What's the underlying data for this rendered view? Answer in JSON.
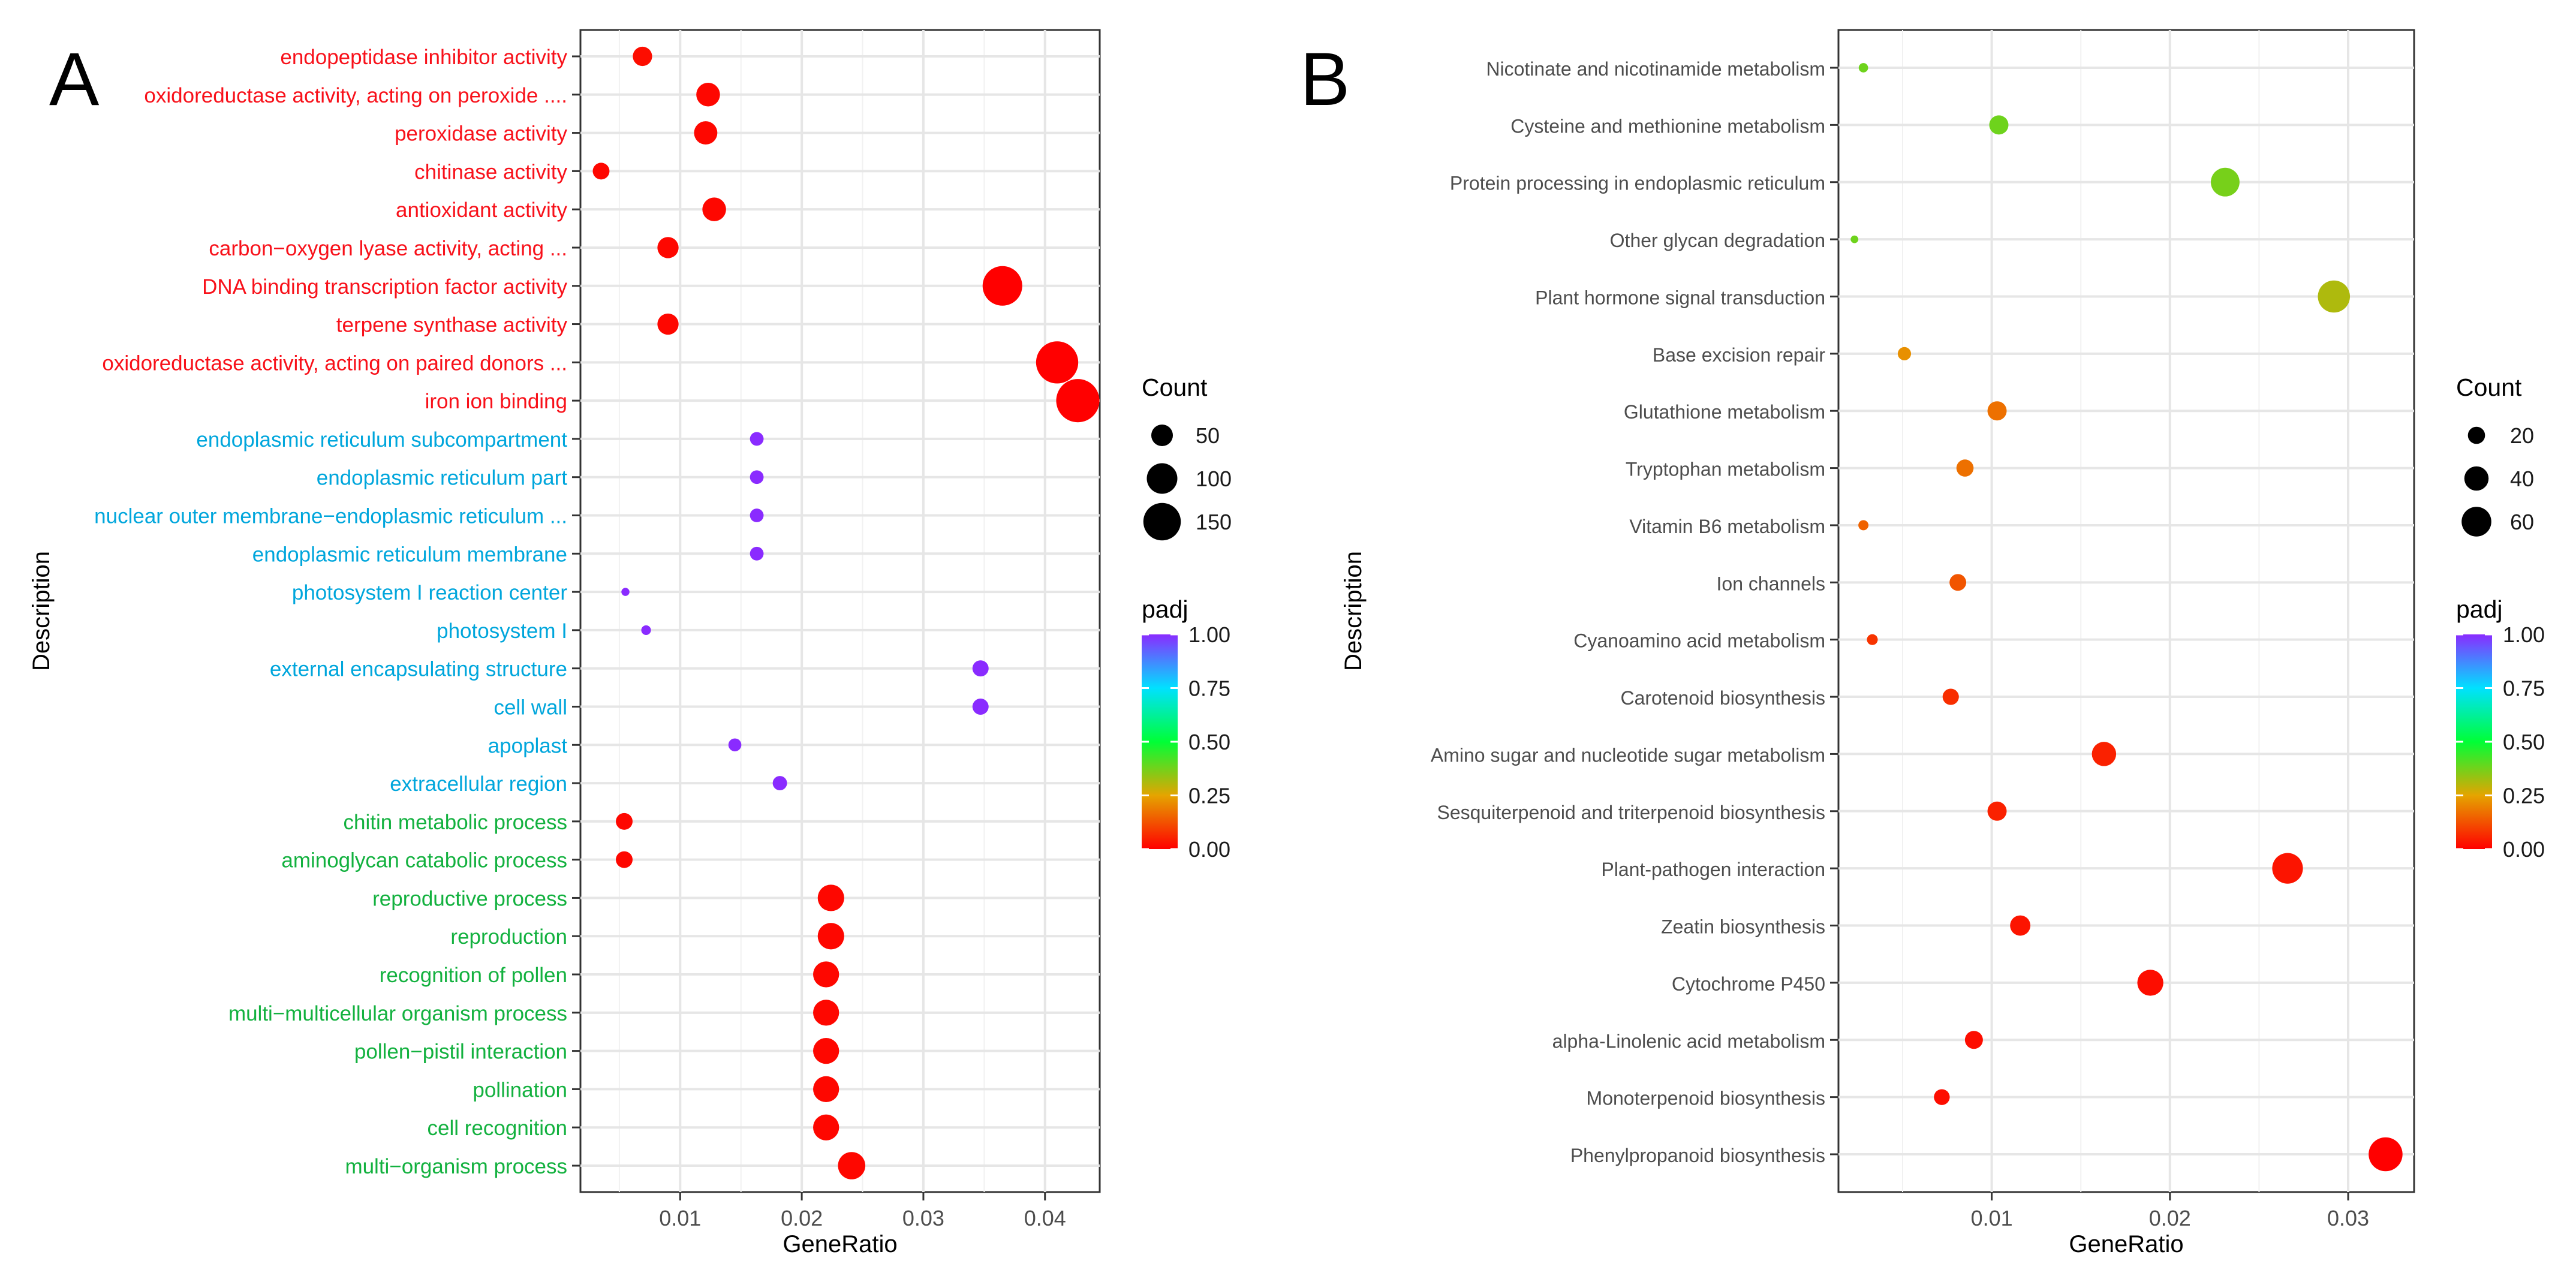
{
  "chart_data": [
    {
      "type": "scatter",
      "panel_label": "A",
      "xlabel": "GeneRatio",
      "ylabel": "Description",
      "xlim": [
        0.0018,
        0.0445
      ],
      "xticks": [
        {
          "value": 0.01,
          "label": "0.01"
        },
        {
          "value": 0.02,
          "label": "0.02"
        },
        {
          "value": 0.03,
          "label": "0.03"
        },
        {
          "value": 0.04,
          "label": "0.04"
        }
      ],
      "grid": true,
      "legend_position": "right",
      "size_legend": {
        "title": "Count",
        "entries": [
          {
            "value": 50,
            "label": "50"
          },
          {
            "value": 100,
            "label": "100"
          },
          {
            "value": 150,
            "label": "150"
          }
        ]
      },
      "color_legend": {
        "title": "padj",
        "ticks": [
          {
            "value": 1.0,
            "label": "1.00"
          },
          {
            "value": 0.75,
            "label": "0.75"
          },
          {
            "value": 0.5,
            "label": "0.50"
          },
          {
            "value": 0.25,
            "label": "0.25"
          },
          {
            "value": 0.0,
            "label": "0.00"
          }
        ]
      },
      "category_colors": {
        "mf": "#f8111a",
        "cc": "#00a6dc",
        "bp": "#13b13f"
      },
      "points": [
        {
          "label": "endopeptidase inhibitor activity",
          "x": 0.0069,
          "count": 40,
          "padj": 0.02,
          "group": "mf"
        },
        {
          "label": "oxidoreductase activity, acting on peroxide ....",
          "x": 0.0123,
          "count": 60,
          "padj": 0.01,
          "group": "mf"
        },
        {
          "label": "peroxidase activity",
          "x": 0.0121,
          "count": 58,
          "padj": 0.01,
          "group": "mf"
        },
        {
          "label": "chitinase activity",
          "x": 0.0035,
          "count": 30,
          "padj": 0.01,
          "group": "mf"
        },
        {
          "label": "antioxidant activity",
          "x": 0.0128,
          "count": 60,
          "padj": 0.01,
          "group": "mf"
        },
        {
          "label": "carbon−oxygen lyase activity, acting ...",
          "x": 0.009,
          "count": 48,
          "padj": 0.01,
          "group": "mf"
        },
        {
          "label": "DNA binding transcription factor activity",
          "x": 0.0365,
          "count": 168,
          "padj": 0.0,
          "group": "mf"
        },
        {
          "label": "terpene synthase activity",
          "x": 0.009,
          "count": 48,
          "padj": 0.01,
          "group": "mf"
        },
        {
          "label": "oxidoreductase activity, acting on paired donors ...",
          "x": 0.041,
          "count": 190,
          "padj": 0.0,
          "group": "mf"
        },
        {
          "label": "iron ion binding",
          "x": 0.0427,
          "count": 200,
          "padj": 0.0,
          "group": "mf"
        },
        {
          "label": "endoplasmic reticulum subcompartment",
          "x": 0.0163,
          "count": 20,
          "padj": 1.0,
          "group": "cc"
        },
        {
          "label": "endoplasmic reticulum part",
          "x": 0.0163,
          "count": 20,
          "padj": 1.0,
          "group": "cc"
        },
        {
          "label": "nuclear outer membrane−endoplasmic reticulum ...",
          "x": 0.0163,
          "count": 20,
          "padj": 1.0,
          "group": "cc"
        },
        {
          "label": "endoplasmic reticulum membrane",
          "x": 0.0163,
          "count": 20,
          "padj": 1.0,
          "group": "cc"
        },
        {
          "label": "photosystem I reaction center",
          "x": 0.0055,
          "count": 7,
          "padj": 1.0,
          "group": "cc"
        },
        {
          "label": "photosystem I",
          "x": 0.0072,
          "count": 10,
          "padj": 1.0,
          "group": "cc"
        },
        {
          "label": "external encapsulating structure",
          "x": 0.0347,
          "count": 28,
          "padj": 1.0,
          "group": "cc"
        },
        {
          "label": "cell wall",
          "x": 0.0347,
          "count": 28,
          "padj": 1.0,
          "group": "cc"
        },
        {
          "label": "apoplast",
          "x": 0.0145,
          "count": 18,
          "padj": 1.0,
          "group": "cc"
        },
        {
          "label": "extracellular region",
          "x": 0.0182,
          "count": 22,
          "padj": 1.0,
          "group": "cc"
        },
        {
          "label": "chitin metabolic process",
          "x": 0.0054,
          "count": 30,
          "padj": 0.01,
          "group": "bp"
        },
        {
          "label": "aminoglycan catabolic process",
          "x": 0.0054,
          "count": 30,
          "padj": 0.01,
          "group": "bp"
        },
        {
          "label": "reproductive process",
          "x": 0.0224,
          "count": 75,
          "padj": 0.01,
          "group": "bp"
        },
        {
          "label": "reproduction",
          "x": 0.0224,
          "count": 75,
          "padj": 0.01,
          "group": "bp"
        },
        {
          "label": "recognition of pollen",
          "x": 0.022,
          "count": 72,
          "padj": 0.01,
          "group": "bp"
        },
        {
          "label": "multi−multicellular organism process",
          "x": 0.022,
          "count": 72,
          "padj": 0.01,
          "group": "bp"
        },
        {
          "label": "pollen−pistil interaction",
          "x": 0.022,
          "count": 72,
          "padj": 0.01,
          "group": "bp"
        },
        {
          "label": "pollination",
          "x": 0.022,
          "count": 72,
          "padj": 0.01,
          "group": "bp"
        },
        {
          "label": "cell recognition",
          "x": 0.022,
          "count": 72,
          "padj": 0.01,
          "group": "bp"
        },
        {
          "label": "multi−organism process",
          "x": 0.0241,
          "count": 80,
          "padj": 0.01,
          "group": "bp"
        }
      ]
    },
    {
      "type": "scatter",
      "panel_label": "B",
      "xlabel": "GeneRatio",
      "ylabel": "Description",
      "xlim": [
        0.0014,
        0.0337
      ],
      "xticks": [
        {
          "value": 0.01,
          "label": "0.01"
        },
        {
          "value": 0.02,
          "label": "0.02"
        },
        {
          "value": 0.03,
          "label": "0.03"
        }
      ],
      "grid": true,
      "legend_position": "right",
      "size_legend": {
        "title": "Count",
        "entries": [
          {
            "value": 20,
            "label": "20"
          },
          {
            "value": 40,
            "label": "40"
          },
          {
            "value": 60,
            "label": "60"
          }
        ]
      },
      "color_legend": {
        "title": "padj",
        "ticks": [
          {
            "value": 1.0,
            "label": "1.00"
          },
          {
            "value": 0.75,
            "label": "0.75"
          },
          {
            "value": 0.5,
            "label": "0.50"
          },
          {
            "value": 0.25,
            "label": "0.25"
          },
          {
            "value": 0.0,
            "label": "0.00"
          }
        ]
      },
      "label_color": "#4d4d4d",
      "points": [
        {
          "label": "Nicotinate and nicotinamide metabolism",
          "x": 0.0028,
          "count": 6,
          "padj": 0.38
        },
        {
          "label": "Cysteine and methionine metabolism",
          "x": 0.0104,
          "count": 25,
          "padj": 0.38
        },
        {
          "label": "Protein processing in endoplasmic reticulum",
          "x": 0.0231,
          "count": 56,
          "padj": 0.37
        },
        {
          "label": "Other glycan degradation",
          "x": 0.0023,
          "count": 4,
          "padj": 0.38
        },
        {
          "label": "Plant hormone signal transduction",
          "x": 0.0292,
          "count": 70,
          "padj": 0.31
        },
        {
          "label": "Base excision repair",
          "x": 0.0051,
          "count": 12,
          "padj": 0.22
        },
        {
          "label": "Glutathione metabolism",
          "x": 0.0103,
          "count": 25,
          "padj": 0.17
        },
        {
          "label": "Tryptophan metabolism",
          "x": 0.0085,
          "count": 20,
          "padj": 0.17
        },
        {
          "label": "Vitamin B6 metabolism",
          "x": 0.0028,
          "count": 7,
          "padj": 0.15
        },
        {
          "label": "Ion channels",
          "x": 0.0081,
          "count": 19,
          "padj": 0.13
        },
        {
          "label": "Cyanoamino acid metabolism",
          "x": 0.0033,
          "count": 8,
          "padj": 0.08
        },
        {
          "label": "Carotenoid biosynthesis",
          "x": 0.0077,
          "count": 18,
          "padj": 0.07
        },
        {
          "label": "Amino sugar and nucleotide sugar metabolism",
          "x": 0.0163,
          "count": 40,
          "padj": 0.05
        },
        {
          "label": "Sesquiterpenoid and triterpenoid biosynthesis",
          "x": 0.0103,
          "count": 25,
          "padj": 0.05
        },
        {
          "label": "Plant-pathogen interaction",
          "x": 0.0266,
          "count": 64,
          "padj": 0.03
        },
        {
          "label": "Zeatin biosynthesis",
          "x": 0.0116,
          "count": 28,
          "padj": 0.03
        },
        {
          "label": "Cytochrome P450",
          "x": 0.0189,
          "count": 46,
          "padj": 0.02
        },
        {
          "label": "alpha-Linolenic acid metabolism",
          "x": 0.009,
          "count": 22,
          "padj": 0.02
        },
        {
          "label": "Monoterpenoid biosynthesis",
          "x": 0.0072,
          "count": 17,
          "padj": 0.02
        },
        {
          "label": "Phenylpropanoid biosynthesis",
          "x": 0.0321,
          "count": 78,
          "padj": 0.0
        }
      ]
    }
  ]
}
